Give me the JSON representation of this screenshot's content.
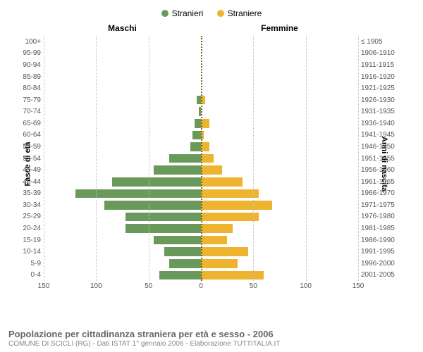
{
  "legend": {
    "male": {
      "label": "Stranieri",
      "color": "#6a9a5b"
    },
    "female": {
      "label": "Straniere",
      "color": "#eeb32f"
    }
  },
  "chart": {
    "type": "population-pyramid",
    "headers": {
      "male": "Maschi",
      "female": "Femmine"
    },
    "axis_titles": {
      "left": "Fasce di età",
      "right": "Anni di nascita"
    },
    "background_color": "#ffffff",
    "grid_color": "#bdbdbd",
    "center_line_color": "#6a6a1a",
    "bar_colors": {
      "male": "#6a9a5b",
      "female": "#eeb32f"
    },
    "x_max": 150,
    "x_ticks": [
      150,
      100,
      50,
      0,
      50,
      100,
      150
    ],
    "age_groups": [
      {
        "age": "100+",
        "birth": "≤ 1905",
        "m": 0,
        "f": 0
      },
      {
        "age": "95-99",
        "birth": "1906-1910",
        "m": 0,
        "f": 0
      },
      {
        "age": "90-94",
        "birth": "1911-1915",
        "m": 0,
        "f": 0
      },
      {
        "age": "85-89",
        "birth": "1916-1920",
        "m": 0,
        "f": 0
      },
      {
        "age": "80-84",
        "birth": "1921-1925",
        "m": 0,
        "f": 0
      },
      {
        "age": "75-79",
        "birth": "1926-1930",
        "m": 4,
        "f": 4
      },
      {
        "age": "70-74",
        "birth": "1931-1935",
        "m": 2,
        "f": 0
      },
      {
        "age": "65-69",
        "birth": "1936-1940",
        "m": 6,
        "f": 8
      },
      {
        "age": "60-64",
        "birth": "1941-1945",
        "m": 8,
        "f": 3
      },
      {
        "age": "55-59",
        "birth": "1946-1950",
        "m": 10,
        "f": 8
      },
      {
        "age": "50-54",
        "birth": "1951-1955",
        "m": 30,
        "f": 12
      },
      {
        "age": "45-49",
        "birth": "1956-1960",
        "m": 45,
        "f": 20
      },
      {
        "age": "40-44",
        "birth": "1961-1965",
        "m": 85,
        "f": 40
      },
      {
        "age": "35-39",
        "birth": "1966-1970",
        "m": 120,
        "f": 55
      },
      {
        "age": "30-34",
        "birth": "1971-1975",
        "m": 92,
        "f": 68
      },
      {
        "age": "25-29",
        "birth": "1976-1980",
        "m": 72,
        "f": 55
      },
      {
        "age": "20-24",
        "birth": "1981-1985",
        "m": 72,
        "f": 30
      },
      {
        "age": "15-19",
        "birth": "1986-1990",
        "m": 45,
        "f": 25
      },
      {
        "age": "10-14",
        "birth": "1991-1995",
        "m": 35,
        "f": 45
      },
      {
        "age": "5-9",
        "birth": "1996-2000",
        "m": 30,
        "f": 35
      },
      {
        "age": "0-4",
        "birth": "2001-2005",
        "m": 40,
        "f": 60
      }
    ]
  },
  "footer": {
    "title": "Popolazione per cittadinanza straniera per età e sesso - 2006",
    "subtitle": "COMUNE DI SCICLI (RG) - Dati ISTAT 1° gennaio 2006 - Elaborazione TUTTITALIA.IT"
  }
}
